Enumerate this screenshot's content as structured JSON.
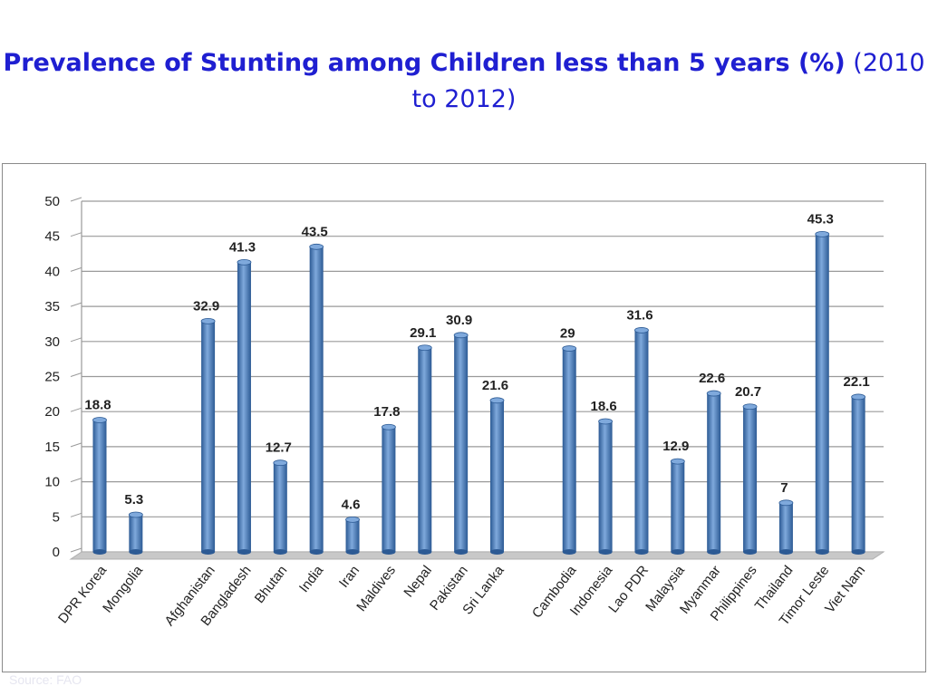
{
  "title": {
    "bold": "Prevalence of Stunting among Children less than 5 years (%)",
    "rest": "(2010 to 2012)"
  },
  "source": "Source: FAO",
  "colors": {
    "bar": "#4a7fc1",
    "bar_light": "#7fa9dc",
    "bar_dark": "#2c5a94",
    "title": "#1f1fd1"
  },
  "chart_data": {
    "type": "bar",
    "categories": [
      "DPR Korea",
      "Mongolia",
      "",
      "Afghanistan",
      "Bangladesh",
      "Bhutan",
      "India",
      "Iran",
      "Maldives",
      "Nepal",
      "Pakistan",
      "Sri Lanka",
      "",
      "Cambodia",
      "Indonesia",
      "Lao PDR",
      "Malaysia",
      "Myanmar",
      "Philippines",
      "Thailand",
      "Timor Leste",
      "Viet Nam"
    ],
    "values": [
      18.8,
      5.3,
      null,
      32.9,
      41.3,
      12.7,
      43.5,
      4.6,
      17.8,
      29.1,
      30.9,
      21.6,
      null,
      29,
      18.6,
      31.6,
      12.9,
      22.6,
      20.7,
      7,
      45.3,
      22.1
    ],
    "labels": [
      "18.8",
      "5.3",
      "",
      "32.9",
      "41.3",
      "12.7",
      "43.5",
      "4.6",
      "17.8",
      "29.1",
      "30.9",
      "21.6",
      "",
      "29",
      "18.6",
      "31.6",
      "12.9",
      "22.6",
      "20.7",
      "7",
      "45.3",
      "22.1"
    ],
    "ylim": [
      0,
      50
    ],
    "yticks": [
      "0",
      "5",
      "10",
      "15",
      "20",
      "25",
      "30",
      "35",
      "40",
      "45",
      "50"
    ],
    "grid": true,
    "legend": "none",
    "xlabel": "",
    "ylabel": ""
  }
}
